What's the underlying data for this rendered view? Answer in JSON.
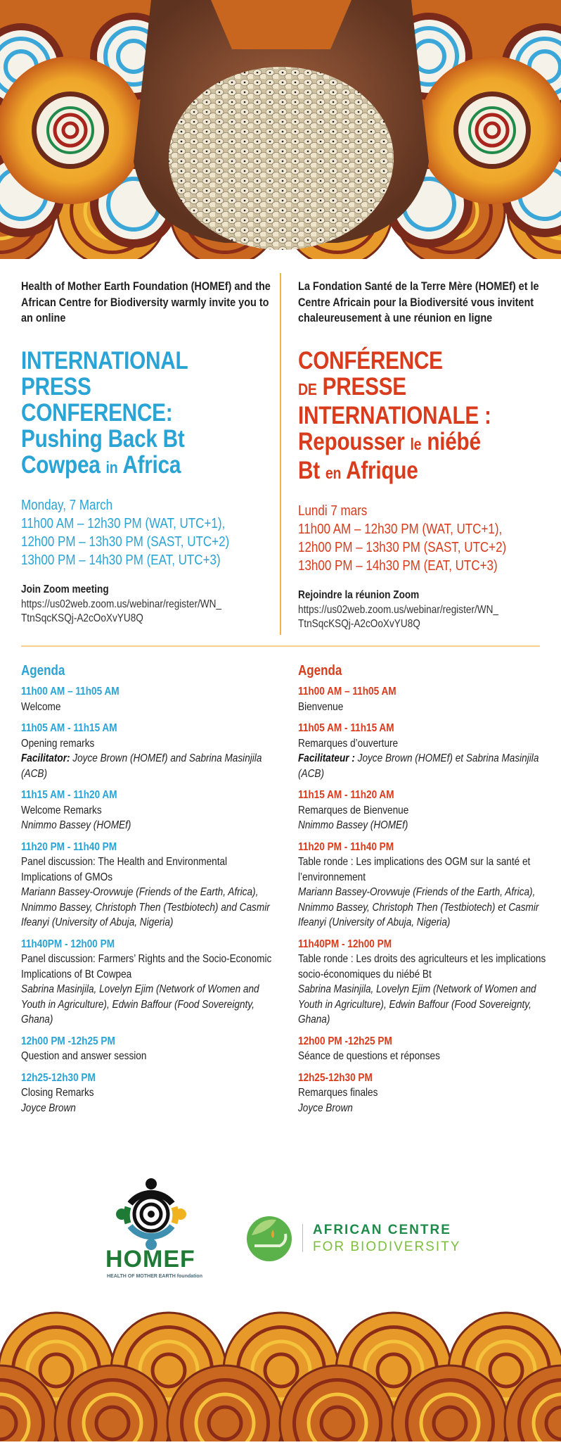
{
  "colors": {
    "english_accent": "#2aa3d5",
    "french_accent": "#d83c1c",
    "divider": "#f0b545"
  },
  "banner_top": {
    "image": "cupped-hands-holding-cowpeas-on-african-wax-print"
  },
  "banner_bottom": {
    "image": "african-wax-print-pattern"
  },
  "english": {
    "intro": "Health of Mother Earth Foundation (HOMEf) and the African Centre for Biodiversity warmly invite you to an online",
    "title_lines": [
      "INTERNATIONAL",
      "PRESS",
      "CONFERENCE:"
    ],
    "subtitle_1": "Pushing Back Bt",
    "subtitle_2a": "Cowpea",
    "subtitle_2b": "in",
    "subtitle_2c": "Africa",
    "date": "Monday, 7 March",
    "times": [
      "11h00 AM – 12h30 PM (WAT, UTC+1),",
      "12h00 PM – 13h30 PM (SAST, UTC+2)",
      "13h00 PM – 14h30 PM (EAT, UTC+3)"
    ],
    "join_label": "Join Zoom meeting",
    "url_lines": [
      "https://us02web.zoom.us/webinar/register/WN_",
      "TtnSqcKSQj-A2cOoXvYU8Q"
    ],
    "agenda_title": "Agenda",
    "agenda": [
      {
        "time": "11h00 AM – 11h05 AM",
        "title": "Welcome"
      },
      {
        "time": "11h05 AM - 11h15 AM",
        "title": "Opening remarks",
        "label": "Facilitator:",
        "people": " Joyce Brown (HOMEf) and Sabrina Masinjila (ACB)"
      },
      {
        "time": "11h15 AM - 11h20 AM",
        "title": "Welcome Remarks",
        "people": "Nnimmo Bassey (HOMEf)"
      },
      {
        "time": "11h20 PM - 11h40 PM",
        "title": "Panel discussion: The Health and Environmental Implications of GMOs",
        "people": "Mariann Bassey-Orovwuje (Friends of the Earth, Africa), Nnimmo Bassey, Christoph Then (Testbiotech) and Casmir Ifeanyi (University of Abuja, Nigeria)"
      },
      {
        "time": "11h40PM - 12h00 PM",
        "title": "Panel discussion: Farmers’ Rights and the Socio-Economic Implications of Bt Cowpea",
        "people": "Sabrina Masinjila, Lovelyn Ejim (Network of Women and Youth in Agriculture), Edwin Baffour (Food Sovereignty, Ghana)"
      },
      {
        "time": "12h00 PM -12h25 PM",
        "title": "Question and answer session"
      },
      {
        "time": "12h25-12h30 PM",
        "title": "Closing Remarks",
        "people": "Joyce Brown"
      }
    ]
  },
  "french": {
    "intro": "La Fondation Santé de la Terre Mère (HOMEf) et le Centre Africain pour la Biodiversité vous invitent chaleureusement à une réunion en ligne",
    "title_1": "CONFÉRENCE",
    "title_2a": "DE",
    "title_2b": "PRESSE",
    "title_3": "INTERNATIONALE :",
    "subtitle_1a": "Repousser",
    "subtitle_1b": "le",
    "subtitle_1c": "niébé",
    "subtitle_2a": "Bt",
    "subtitle_2b": "en",
    "subtitle_2c": "Afrique",
    "date": "Lundi 7 mars",
    "times": [
      "11h00 AM – 12h30 PM (WAT, UTC+1),",
      "12h00 PM – 13h30 PM (SAST, UTC+2)",
      "13h00 PM – 14h30 PM (EAT, UTC+3)"
    ],
    "join_label": "Rejoindre la réunion Zoom",
    "url_lines": [
      "https://us02web.zoom.us/webinar/register/WN_",
      "TtnSqcKSQj-A2cOoXvYU8Q"
    ],
    "agenda_title": "Agenda",
    "agenda": [
      {
        "time": "11h00 AM – 11h05 AM",
        "title": "Bienvenue"
      },
      {
        "time": "11h05 AM - 11h15 AM",
        "title": "Remarques d’ouverture",
        "label": "Facilitateur :",
        "people": " Joyce Brown (HOMEf) et Sabrina Masinjila (ACB)"
      },
      {
        "time": "11h15 AM - 11h20 AM",
        "title": "Remarques de Bienvenue",
        "people": "Nnimmo Bassey (HOMEf)"
      },
      {
        "time": "11h20 PM - 11h40 PM",
        "title": "Table ronde : Les implications des OGM sur la santé et l’environnement",
        "people": "Mariann Bassey-Orovwuje (Friends of the Earth, Africa), Nnimmo Bassey, Christoph Then (Testbiotech) et Casmir Ifeanyi (University of Abuja, Nigeria)"
      },
      {
        "time": "11h40PM - 12h00 PM",
        "title": "Table ronde : Les droits des agriculteurs et les implications socio-économiques du niébé Bt",
        "people": "Sabrina Masinjila, Lovelyn Ejim (Network of Women and Youth in Agriculture), Edwin Baffour (Food Sovereignty, Ghana)"
      },
      {
        "time": "12h00 PM -12h25 PM",
        "title": "Séance de questions et réponses"
      },
      {
        "time": "12h25-12h30 PM",
        "title": "Remarques finales",
        "people": "Joyce Brown"
      }
    ]
  },
  "logos": {
    "homef_name": "HOMEF",
    "homef_tagline": "HEALTH OF MOTHER EARTH foundation",
    "acb_line1": "AFRICAN CENTRE",
    "acb_line2": "FOR BIODIVERSITY"
  }
}
